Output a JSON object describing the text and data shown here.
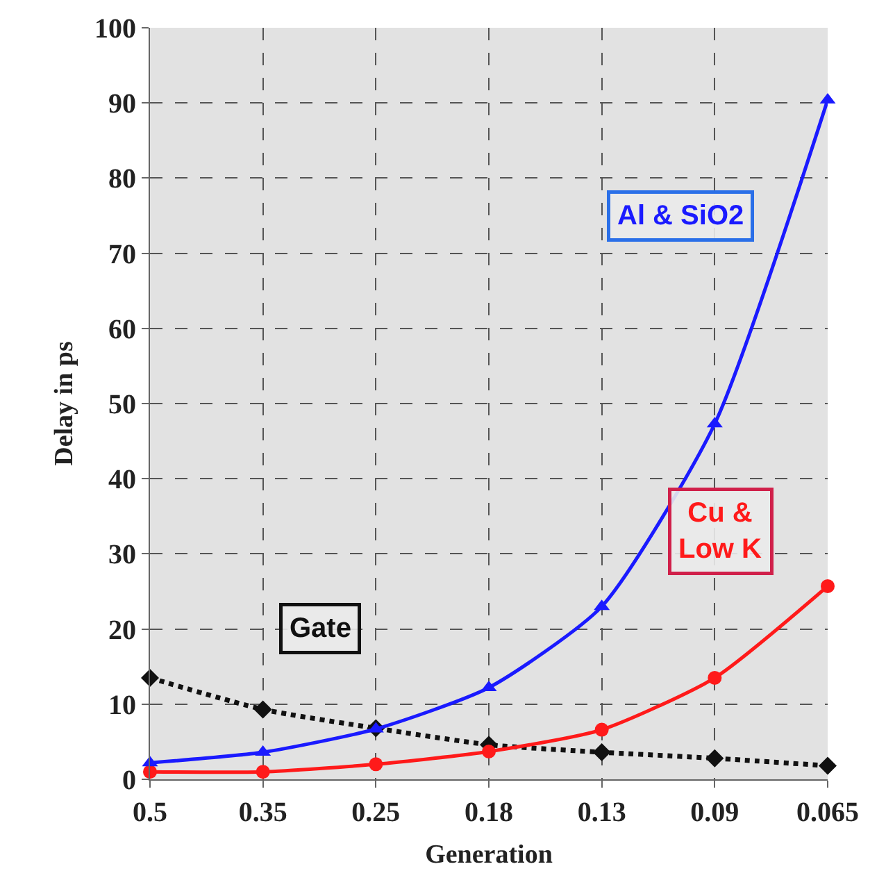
{
  "chart_data": {
    "type": "line",
    "xlabel": "Generation",
    "ylabel": "Delay in ps",
    "categories": [
      "0.5",
      "0.35",
      "0.25",
      "0.18",
      "0.13",
      "0.09",
      "0.065"
    ],
    "series": [
      {
        "name": "Al & SiO2",
        "color": "#1a1aff",
        "marker": "triangle",
        "line_style": "solid",
        "values": [
          2.2,
          3.6,
          6.7,
          12.2,
          23,
          47.3,
          90.4
        ]
      },
      {
        "name": "Cu & Low K",
        "color": "#ff1a1a",
        "marker": "circle",
        "line_style": "solid",
        "values": [
          1,
          1,
          2,
          3.7,
          6.6,
          13.5,
          25.7
        ]
      },
      {
        "name": "Gate",
        "color": "#111111",
        "marker": "diamond",
        "line_style": "dotted",
        "values": [
          13.5,
          9.3,
          6.8,
          4.6,
          3.6,
          2.8,
          1.8
        ]
      }
    ],
    "ylim": [
      0,
      100
    ],
    "yticks": [
      0,
      10,
      20,
      30,
      40,
      50,
      60,
      70,
      80,
      90,
      100
    ],
    "grid": true,
    "legend": false
  }
}
